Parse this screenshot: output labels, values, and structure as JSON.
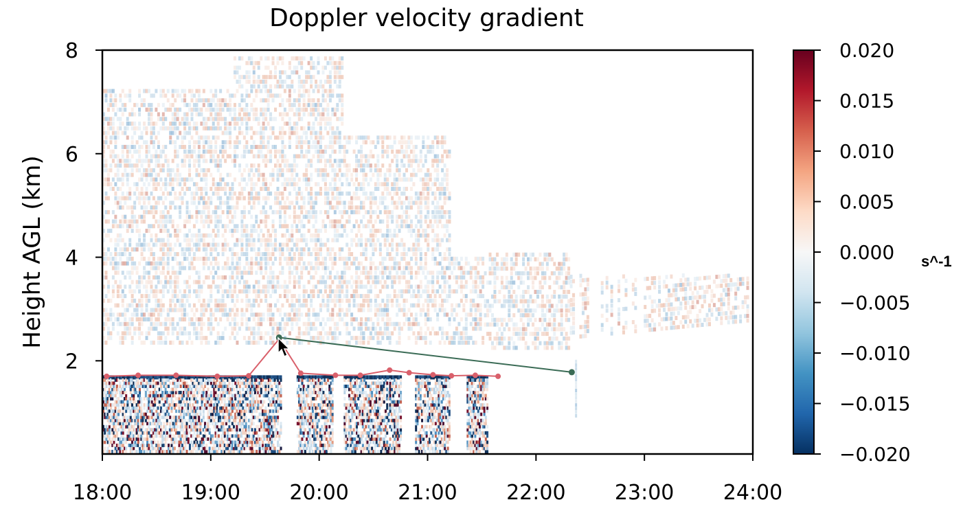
{
  "chart_data": {
    "type": "heatmap",
    "title": "Doppler velocity gradient",
    "xlabel": "",
    "ylabel": "Height AGL (km)",
    "x_ticks": [
      "18:00",
      "19:00",
      "20:00",
      "21:00",
      "22:00",
      "23:00",
      "24:00"
    ],
    "y_ticks": [
      "2",
      "4",
      "6",
      "8"
    ],
    "xlim_hours": [
      18,
      24
    ],
    "ylim_km": [
      0.2,
      8
    ],
    "colorbar": {
      "label": "s^-1",
      "ticks": [
        "0.020",
        "0.015",
        "0.010",
        "0.005",
        "0.000",
        "−0.005",
        "−0.010",
        "−0.015",
        "−0.020"
      ],
      "range": [
        -0.02,
        0.02
      ],
      "colormap": "RdBu_r",
      "colors": [
        "#053061",
        "#2166ac",
        "#4393c3",
        "#92c5de",
        "#d1e5f0",
        "#f7f7f7",
        "#fddbc7",
        "#f4a582",
        "#d6604d",
        "#b2182b",
        "#67001f"
      ]
    },
    "series": [
      {
        "color": "#d9606b",
        "points": [
          {
            "t": 18.04,
            "h": 1.7
          },
          {
            "t": 18.33,
            "h": 1.72
          },
          {
            "t": 18.68,
            "h": 1.72
          },
          {
            "t": 19.06,
            "h": 1.7
          },
          {
            "t": 19.35,
            "h": 1.71
          },
          {
            "t": 19.63,
            "h": 2.42
          },
          {
            "t": 19.83,
            "h": 1.76
          },
          {
            "t": 20.15,
            "h": 1.72
          },
          {
            "t": 20.38,
            "h": 1.72
          },
          {
            "t": 20.65,
            "h": 1.82
          },
          {
            "t": 20.83,
            "h": 1.77
          },
          {
            "t": 21.05,
            "h": 1.73
          },
          {
            "t": 21.22,
            "h": 1.71
          },
          {
            "t": 21.44,
            "h": 1.72
          },
          {
            "t": 21.65,
            "h": 1.7
          }
        ]
      },
      {
        "color": "#3a6b55",
        "points": [
          {
            "t": 19.63,
            "h": 2.45
          },
          {
            "t": 22.33,
            "h": 1.78
          }
        ]
      }
    ]
  }
}
